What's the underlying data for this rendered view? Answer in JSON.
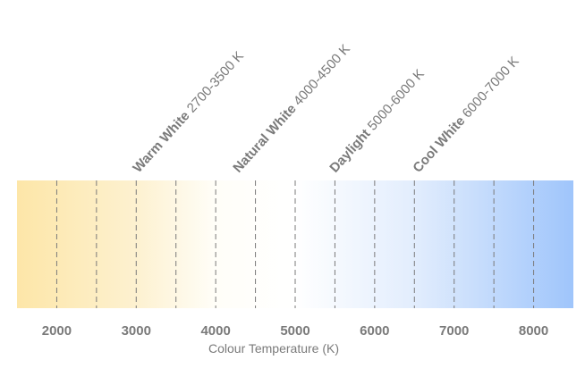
{
  "chart_data": {
    "type": "color-scale",
    "x_label": "Colour Temperature (K)",
    "xlim": [
      1500,
      8500
    ],
    "xticks": [
      2000,
      3000,
      4000,
      5000,
      6000,
      7000,
      8000
    ],
    "minor_xticks": [
      2500,
      3500,
      4500,
      5500,
      6500,
      7500
    ],
    "grid": true,
    "gradient": [
      {
        "value": 1500,
        "color": "#fde6a8"
      },
      {
        "value": 3000,
        "color": "#fdf1d0"
      },
      {
        "value": 4000,
        "color": "#fffef8"
      },
      {
        "value": 5000,
        "color": "#ffffff"
      },
      {
        "value": 6500,
        "color": "#e2edfd"
      },
      {
        "value": 8500,
        "color": "#9fc5fb"
      }
    ],
    "regions": [
      {
        "name": "Warm White",
        "range": "2700-3500 K"
      },
      {
        "name": "Natural White",
        "range": "4000-4500 K"
      },
      {
        "name": "Daylight",
        "range": "5000-6000 K"
      },
      {
        "name": "Cool White",
        "range": "6000-7000 K"
      }
    ]
  }
}
